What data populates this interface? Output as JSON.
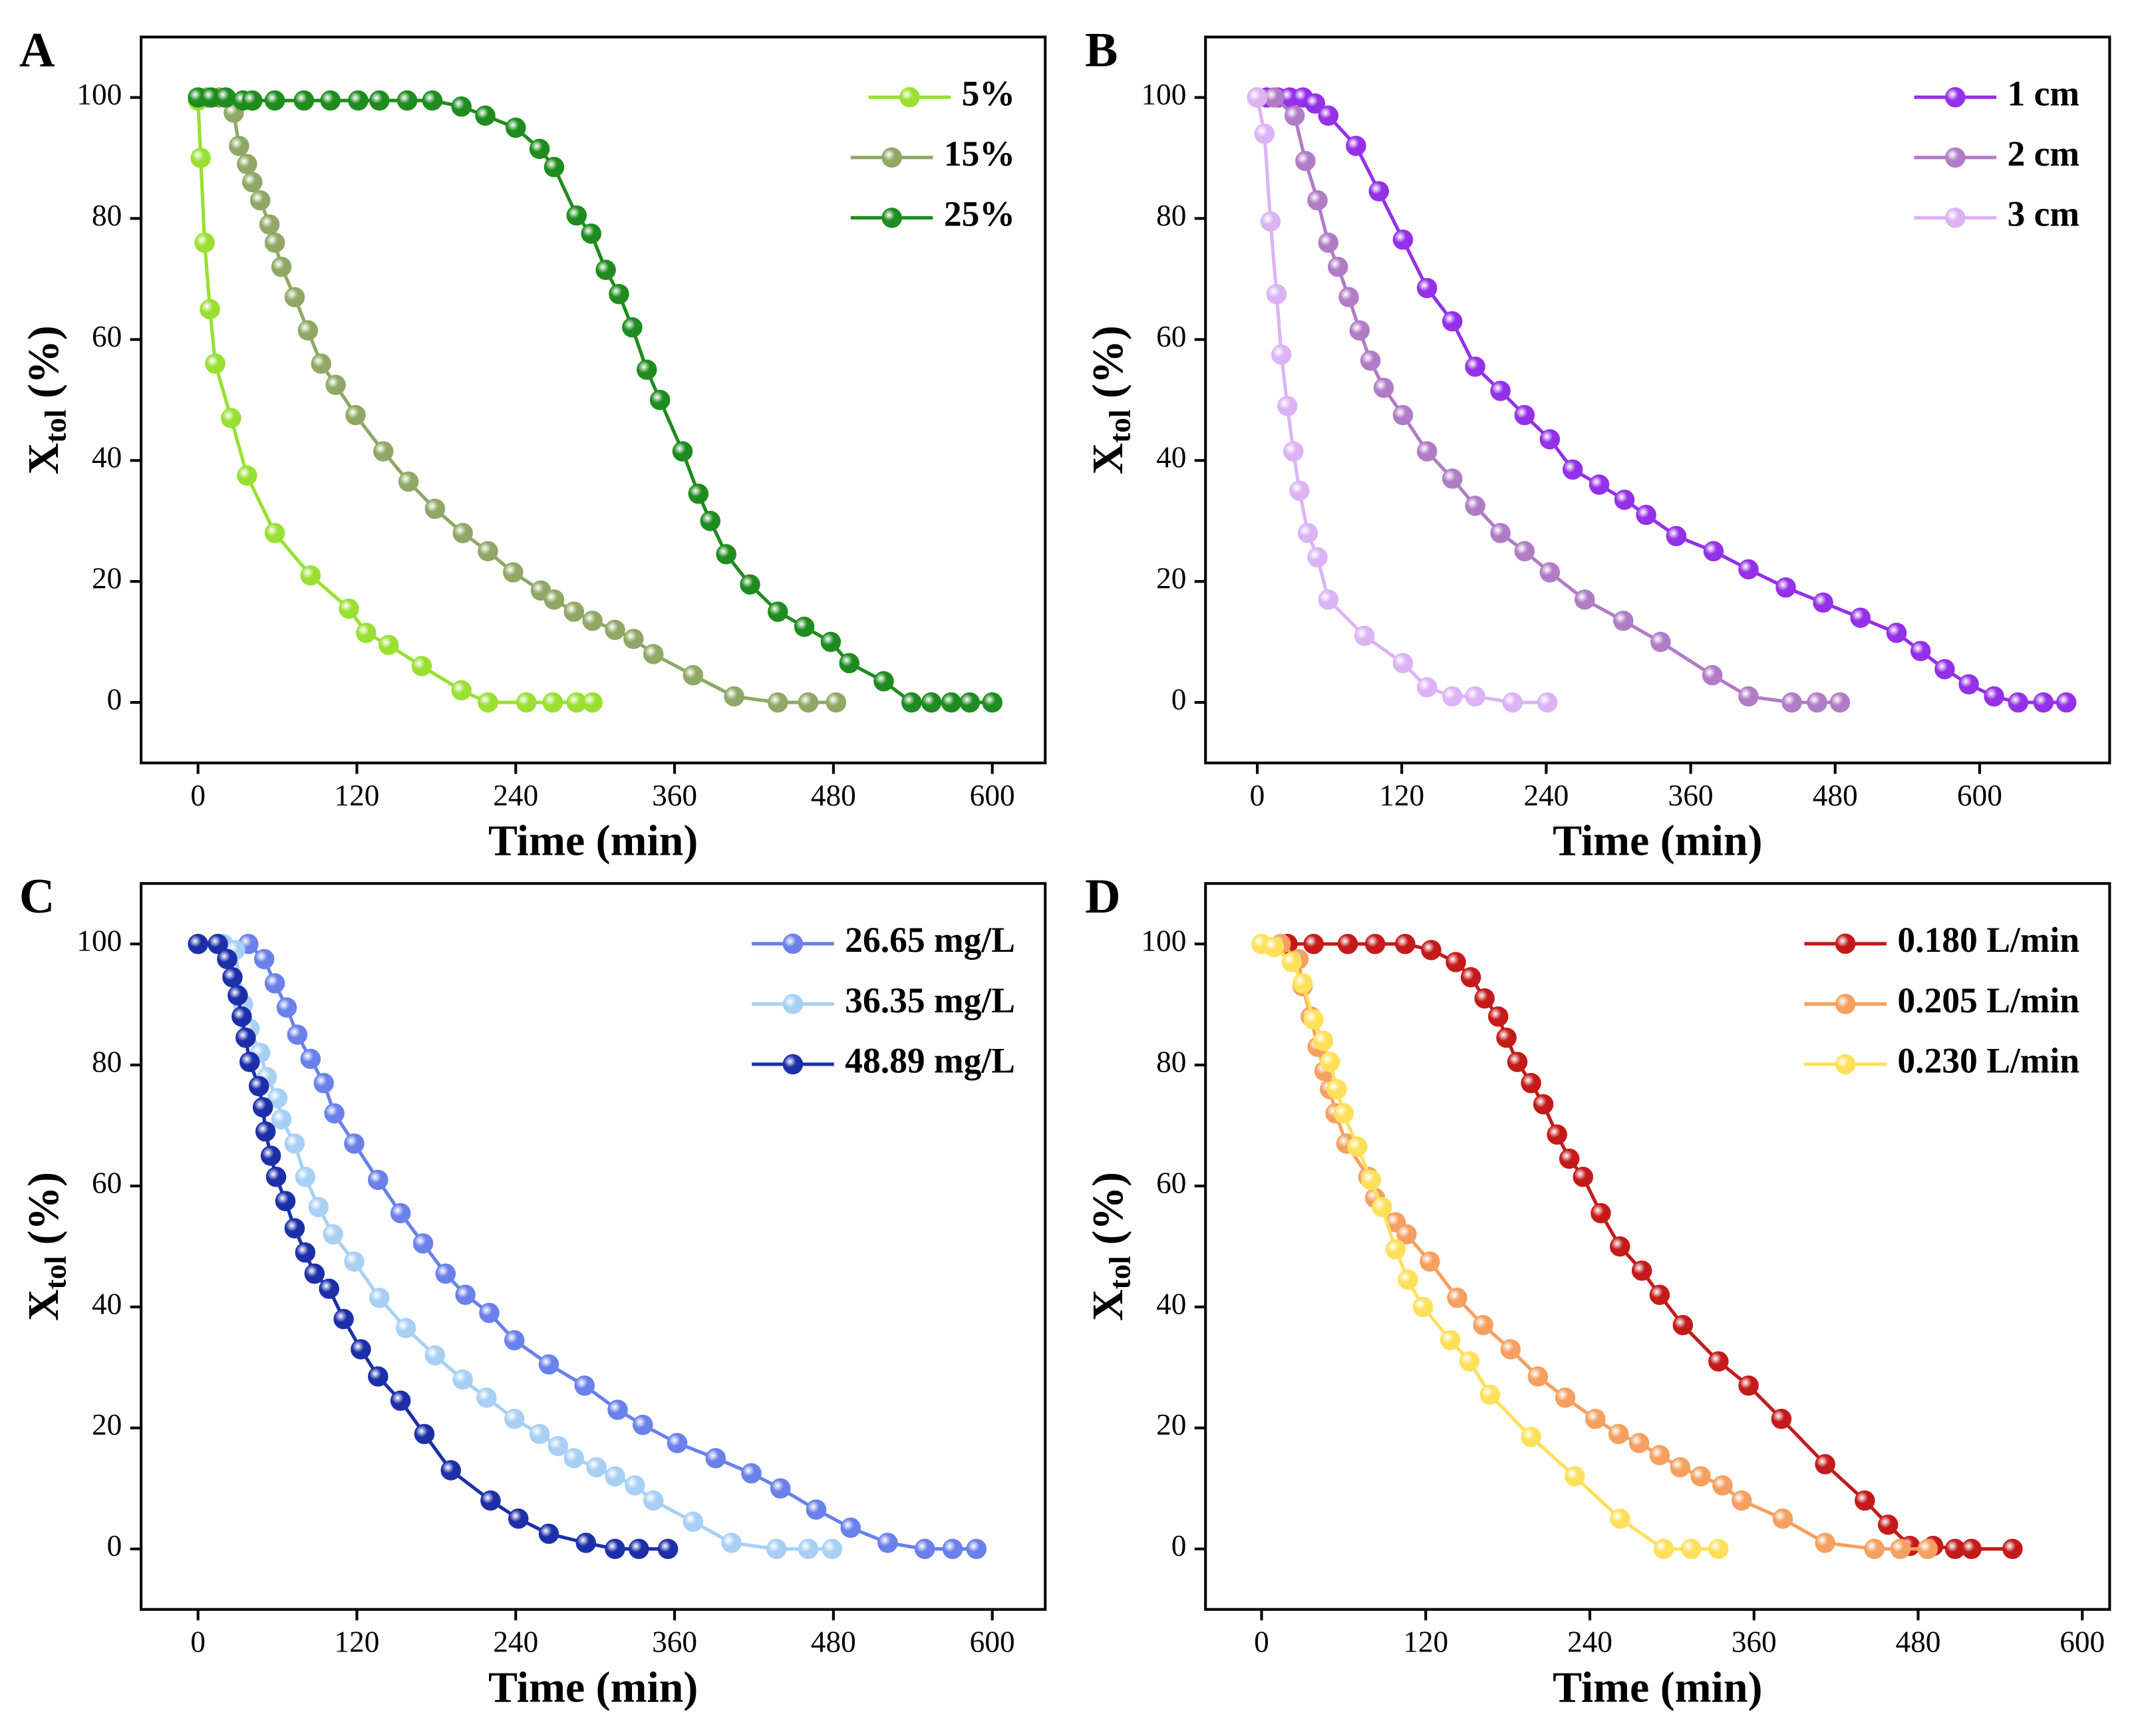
{
  "chart_data": [
    {
      "type": "line",
      "panel_label": "A",
      "xlabel": "Time (min)",
      "ylabel": [
        "X",
        "tol",
        "(%)"
      ],
      "xlim": [
        -43,
        640
      ],
      "ylim": [
        -10,
        110
      ],
      "xticks": [
        0,
        120,
        240,
        360,
        480,
        600
      ],
      "yticks": [
        0,
        20,
        40,
        60,
        80,
        100
      ],
      "legend": "upper right",
      "series": [
        {
          "name": "5%",
          "color": "#99e033",
          "x": [
            0,
            2,
            5,
            9,
            13,
            25,
            37,
            58,
            85,
            114,
            127,
            144,
            169,
            199,
            219,
            248,
            268,
            286,
            298
          ],
          "values": [
            99.5,
            90,
            76,
            65,
            56,
            47,
            37.5,
            28,
            21,
            15.5,
            11.5,
            9.5,
            6,
            2,
            0,
            0,
            0,
            0,
            0
          ]
        },
        {
          "name": "15%",
          "color": "#8fa866",
          "x": [
            0,
            7,
            16,
            27,
            31,
            37,
            41,
            47,
            54,
            58,
            63,
            73,
            83,
            93,
            104,
            119,
            140,
            159,
            179,
            200,
            219,
            238,
            259,
            269,
            284,
            298,
            315,
            329,
            344,
            374,
            405,
            438,
            461,
            482
          ],
          "values": [
            100,
            100,
            100,
            97.5,
            92,
            89,
            86,
            83,
            79,
            76,
            72,
            67,
            61.5,
            56,
            52.5,
            47.5,
            41.5,
            36.5,
            32,
            28,
            25,
            21.5,
            18.5,
            17,
            15,
            13.5,
            12,
            10.5,
            8,
            4.5,
            1,
            0,
            0,
            0
          ]
        },
        {
          "name": "25%",
          "color": "#1e8c1e",
          "x": [
            0,
            10,
            21,
            34,
            41,
            58,
            80,
            100,
            121,
            137,
            158,
            177,
            199,
            217,
            240,
            258,
            269,
            286,
            297,
            308,
            318,
            328,
            339,
            349,
            366,
            378,
            387,
            399,
            417,
            438,
            458,
            478,
            492,
            518,
            539,
            554,
            569,
            583,
            600
          ],
          "values": [
            100,
            100,
            100,
            99.5,
            99.5,
            99.5,
            99.5,
            99.5,
            99.5,
            99.5,
            99.5,
            99.5,
            98.5,
            97,
            95,
            91.5,
            88.5,
            80.5,
            77.5,
            71.5,
            67.5,
            62,
            55,
            50,
            41.5,
            34.5,
            30,
            24.5,
            19.5,
            15,
            12.5,
            10,
            6.5,
            3.5,
            0,
            0,
            0,
            0,
            0
          ]
        }
      ]
    },
    {
      "type": "line",
      "panel_label": "B",
      "xlabel": "Time (min)",
      "ylabel": [
        "X",
        "tol",
        "(%)"
      ],
      "xlim": [
        -43,
        708
      ],
      "ylim": [
        -10,
        110
      ],
      "xticks": [
        0,
        120,
        240,
        360,
        480,
        600
      ],
      "yticks": [
        0,
        20,
        40,
        60,
        80,
        100
      ],
      "legend": "upper right",
      "series": [
        {
          "name": "1 cm",
          "color": "#9430e8",
          "x": [
            0,
            8,
            17,
            27,
            38,
            48,
            59,
            82,
            101,
            121,
            141,
            162,
            181,
            202,
            222,
            243,
            262,
            284,
            305,
            323,
            348,
            379,
            408,
            439,
            470,
            501,
            531,
            551,
            571,
            591,
            612,
            632,
            653,
            672
          ],
          "values": [
            100,
            100,
            100,
            100,
            100,
            99,
            97,
            92,
            84.5,
            76.5,
            68.5,
            63,
            55.5,
            51.5,
            47.5,
            43.5,
            38.5,
            36,
            33.5,
            31,
            27.5,
            25,
            22,
            19,
            16.5,
            14,
            11.5,
            8.5,
            5.5,
            3,
            1,
            0,
            0,
            0
          ]
        },
        {
          "name": "2 cm",
          "color": "#b07cc6",
          "x": [
            0,
            14,
            31,
            40,
            50,
            59,
            67,
            76,
            85,
            94,
            105,
            121,
            141,
            162,
            181,
            202,
            222,
            243,
            272,
            304,
            335,
            378,
            408,
            444,
            465,
            484
          ],
          "values": [
            100,
            100,
            97,
            89.5,
            83,
            76,
            72,
            67,
            61.5,
            56.5,
            52,
            47.5,
            41.5,
            37,
            32.5,
            28,
            25,
            21.5,
            17,
            13.5,
            10,
            4.5,
            1,
            0,
            0,
            0
          ]
        },
        {
          "name": "3 cm",
          "color": "#dcb4f5",
          "x": [
            0,
            6,
            11,
            16,
            20,
            25,
            30,
            35,
            42,
            50,
            59,
            89,
            121,
            141,
            162,
            181,
            212,
            241
          ],
          "values": [
            100,
            94,
            79.5,
            67.5,
            57.5,
            49,
            41.5,
            35,
            28,
            24,
            17,
            11,
            6.5,
            2.5,
            1,
            1,
            0,
            0
          ]
        }
      ]
    },
    {
      "type": "line",
      "panel_label": "C",
      "xlabel": "Time (min)",
      "ylabel": [
        "X",
        "tol",
        "(%)"
      ],
      "xlim": [
        -43,
        640
      ],
      "ylim": [
        -10,
        110
      ],
      "xticks": [
        0,
        120,
        240,
        360,
        480,
        600
      ],
      "yticks": [
        0,
        20,
        40,
        60,
        80,
        100
      ],
      "legend": "upper right",
      "series": [
        {
          "name": "26.65 mg/L",
          "color": "#6a80ea",
          "x": [
            38,
            50,
            58,
            67,
            75,
            85,
            95,
            103,
            118,
            136,
            153,
            170,
            187,
            202,
            220,
            239,
            265,
            292,
            317,
            336,
            362,
            391,
            418,
            440,
            467,
            493,
            521,
            549,
            570,
            588
          ],
          "values": [
            100,
            97.5,
            93.5,
            89.5,
            85,
            81,
            77,
            72,
            67,
            61,
            55.5,
            50.5,
            45.5,
            42,
            39,
            34.5,
            30.5,
            27,
            23,
            20.5,
            17.5,
            15,
            12.5,
            10,
            6.5,
            3.5,
            1,
            0,
            0,
            0
          ]
        },
        {
          "name": "36.35 mg/L",
          "color": "#a8d0f5",
          "x": [
            19,
            28,
            34,
            39,
            47,
            52,
            60,
            63,
            73,
            81,
            91,
            102,
            118,
            137,
            157,
            179,
            200,
            218,
            239,
            258,
            272,
            284,
            301,
            315,
            330,
            344,
            374,
            403,
            437,
            461,
            479
          ],
          "values": [
            100,
            99,
            90,
            86,
            82,
            78,
            74.5,
            71,
            67,
            61.5,
            56.5,
            52,
            47.5,
            41.5,
            36.5,
            32,
            28,
            25,
            21.5,
            19,
            17,
            15,
            13.5,
            12,
            10.5,
            8,
            4.5,
            1,
            0,
            0,
            0
          ]
        },
        {
          "name": "48.89 mg/L",
          "color": "#1c2fa8",
          "x": [
            0,
            15,
            22,
            26,
            30,
            33,
            36,
            39,
            46,
            49,
            51,
            55,
            59,
            66,
            73,
            81,
            88,
            99,
            110,
            123,
            136,
            153,
            171,
            191,
            221,
            242,
            265,
            293,
            315,
            333,
            355
          ],
          "values": [
            100,
            100,
            97.5,
            94.5,
            91.5,
            88,
            84.5,
            80.5,
            76.5,
            73,
            69,
            65,
            61.5,
            57.5,
            53,
            49,
            45.5,
            43,
            38,
            33,
            28.5,
            24.5,
            19,
            13,
            8,
            5,
            2.5,
            1,
            0,
            0,
            0
          ]
        }
      ]
    },
    {
      "type": "line",
      "panel_label": "D",
      "xlabel": "Time (min)",
      "ylabel": [
        "X",
        "tol",
        "(%)"
      ],
      "xlim": [
        -41,
        620
      ],
      "ylim": [
        -10,
        110
      ],
      "xticks": [
        0,
        120,
        240,
        360,
        480,
        600
      ],
      "yticks": [
        0,
        20,
        40,
        60,
        80,
        100
      ],
      "legend": "upper right",
      "series": [
        {
          "name": "0.180 L/min",
          "color": "#c41a1a",
          "x": [
            19,
            38,
            63,
            83,
            105,
            124,
            142,
            153,
            163,
            173,
            179,
            187,
            197,
            206,
            216,
            225,
            235,
            248,
            262,
            278,
            291,
            308,
            334,
            356,
            380,
            412,
            441,
            458,
            474,
            491,
            507,
            519,
            549
          ],
          "values": [
            100,
            100,
            100,
            100,
            100,
            99,
            97,
            94.5,
            91,
            88,
            84.5,
            80.5,
            77,
            73.5,
            68.5,
            64.5,
            61.5,
            55.5,
            50,
            46,
            42,
            37,
            31,
            27,
            21.5,
            14,
            8,
            4,
            0.5,
            0.5,
            0,
            0,
            0
          ]
        },
        {
          "name": "0.205 L/min",
          "color": "#f5a060",
          "x": [
            0,
            14,
            27,
            30,
            36,
            41,
            46,
            50,
            54,
            62,
            78,
            83,
            98,
            106,
            123,
            143,
            162,
            182,
            202,
            222,
            244,
            261,
            276,
            291,
            306,
            321,
            337,
            351,
            381,
            412,
            448,
            467,
            487
          ],
          "values": [
            100,
            100,
            97.5,
            93,
            88,
            83,
            79,
            76,
            72,
            67,
            61.5,
            58,
            54,
            52,
            47.5,
            41.5,
            37,
            33,
            28.5,
            25,
            21.5,
            19,
            17.5,
            15.5,
            13.5,
            12,
            10.5,
            8,
            5,
            1,
            0,
            0,
            0
          ]
        },
        {
          "name": "0.230 L/min",
          "color": "#ffe05a",
          "x": [
            0,
            9,
            22,
            30,
            38,
            45,
            50,
            55,
            60,
            70,
            80,
            88,
            98,
            107,
            118,
            138,
            152,
            167,
            197,
            229,
            262,
            294,
            314,
            334
          ],
          "values": [
            100,
            99.5,
            97,
            93.5,
            87.5,
            84,
            80.5,
            76,
            72,
            66.5,
            61,
            56.5,
            49.5,
            44.5,
            40,
            34.5,
            31,
            25.5,
            18.5,
            12,
            5,
            0,
            0,
            0
          ]
        }
      ]
    }
  ]
}
